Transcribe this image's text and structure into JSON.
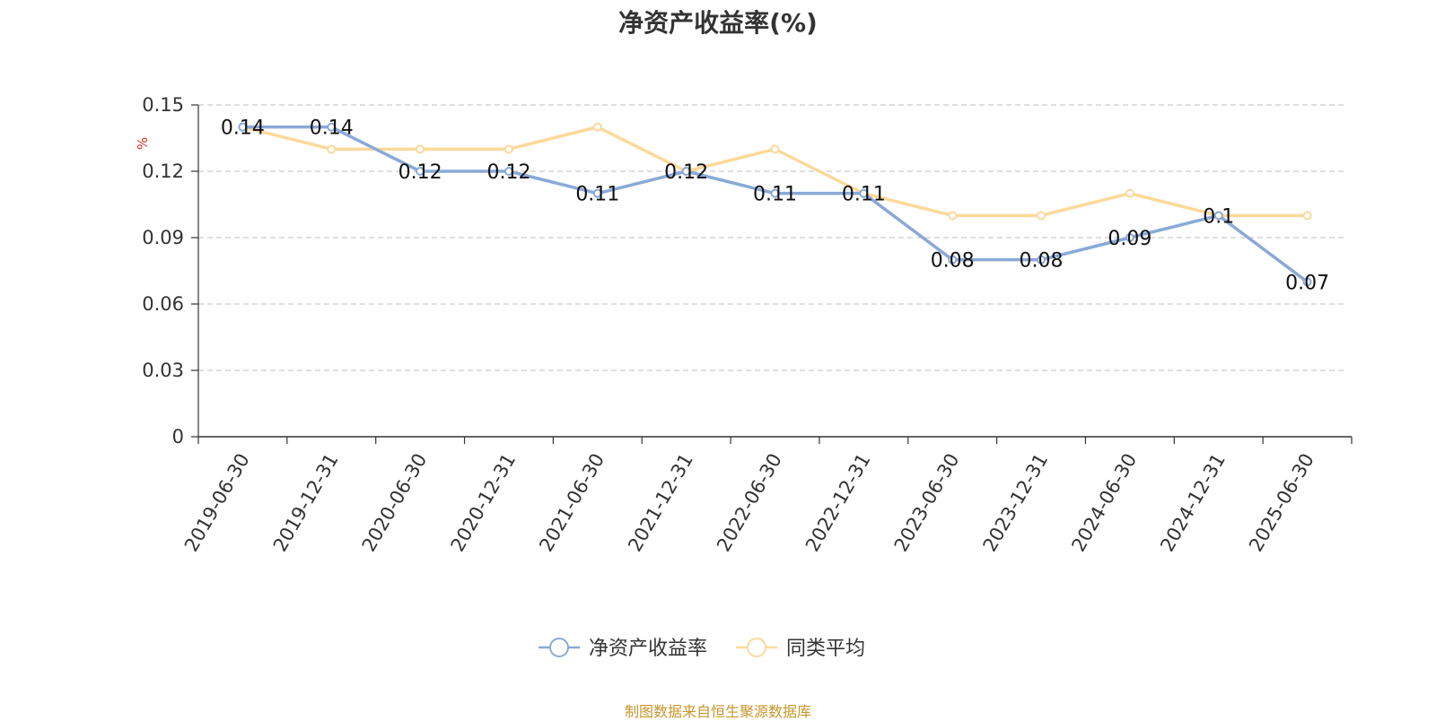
{
  "chart_data": {
    "type": "line",
    "title": "净资产收益率(%)",
    "ylabel": "%",
    "ylim": [
      0,
      0.15
    ],
    "yticks": [
      "0",
      "0.03",
      "0.06",
      "0.09",
      "0.12",
      "0.15"
    ],
    "categories": [
      "2019-06-30",
      "2019-12-31",
      "2020-06-30",
      "2020-12-31",
      "2021-06-30",
      "2021-12-31",
      "2022-06-30",
      "2022-12-31",
      "2023-06-30",
      "2023-12-31",
      "2024-06-30",
      "2024-12-31",
      "2025-06-30"
    ],
    "series": [
      {
        "name": "净资产收益率",
        "color": "#8aa9d6",
        "values": [
          0.14,
          0.14,
          0.12,
          0.12,
          0.11,
          0.12,
          0.11,
          0.11,
          0.08,
          0.08,
          0.09,
          0.1,
          0.07
        ],
        "labels": [
          "0.14",
          "0.14",
          "0.12",
          "0.12",
          "0.11",
          "0.12",
          "0.11",
          "0.11",
          "0.08",
          "0.08",
          "0.09",
          "0.1",
          "0.07"
        ]
      },
      {
        "name": "同类平均",
        "color": "#fcd99a",
        "values": [
          0.14,
          0.13,
          0.13,
          0.13,
          0.14,
          0.12,
          0.13,
          0.11,
          0.1,
          0.1,
          0.11,
          0.1,
          0.1
        ]
      }
    ],
    "grid": true,
    "legend_position": "bottom-center"
  },
  "footer": "制图数据来自恒生聚源数据库"
}
